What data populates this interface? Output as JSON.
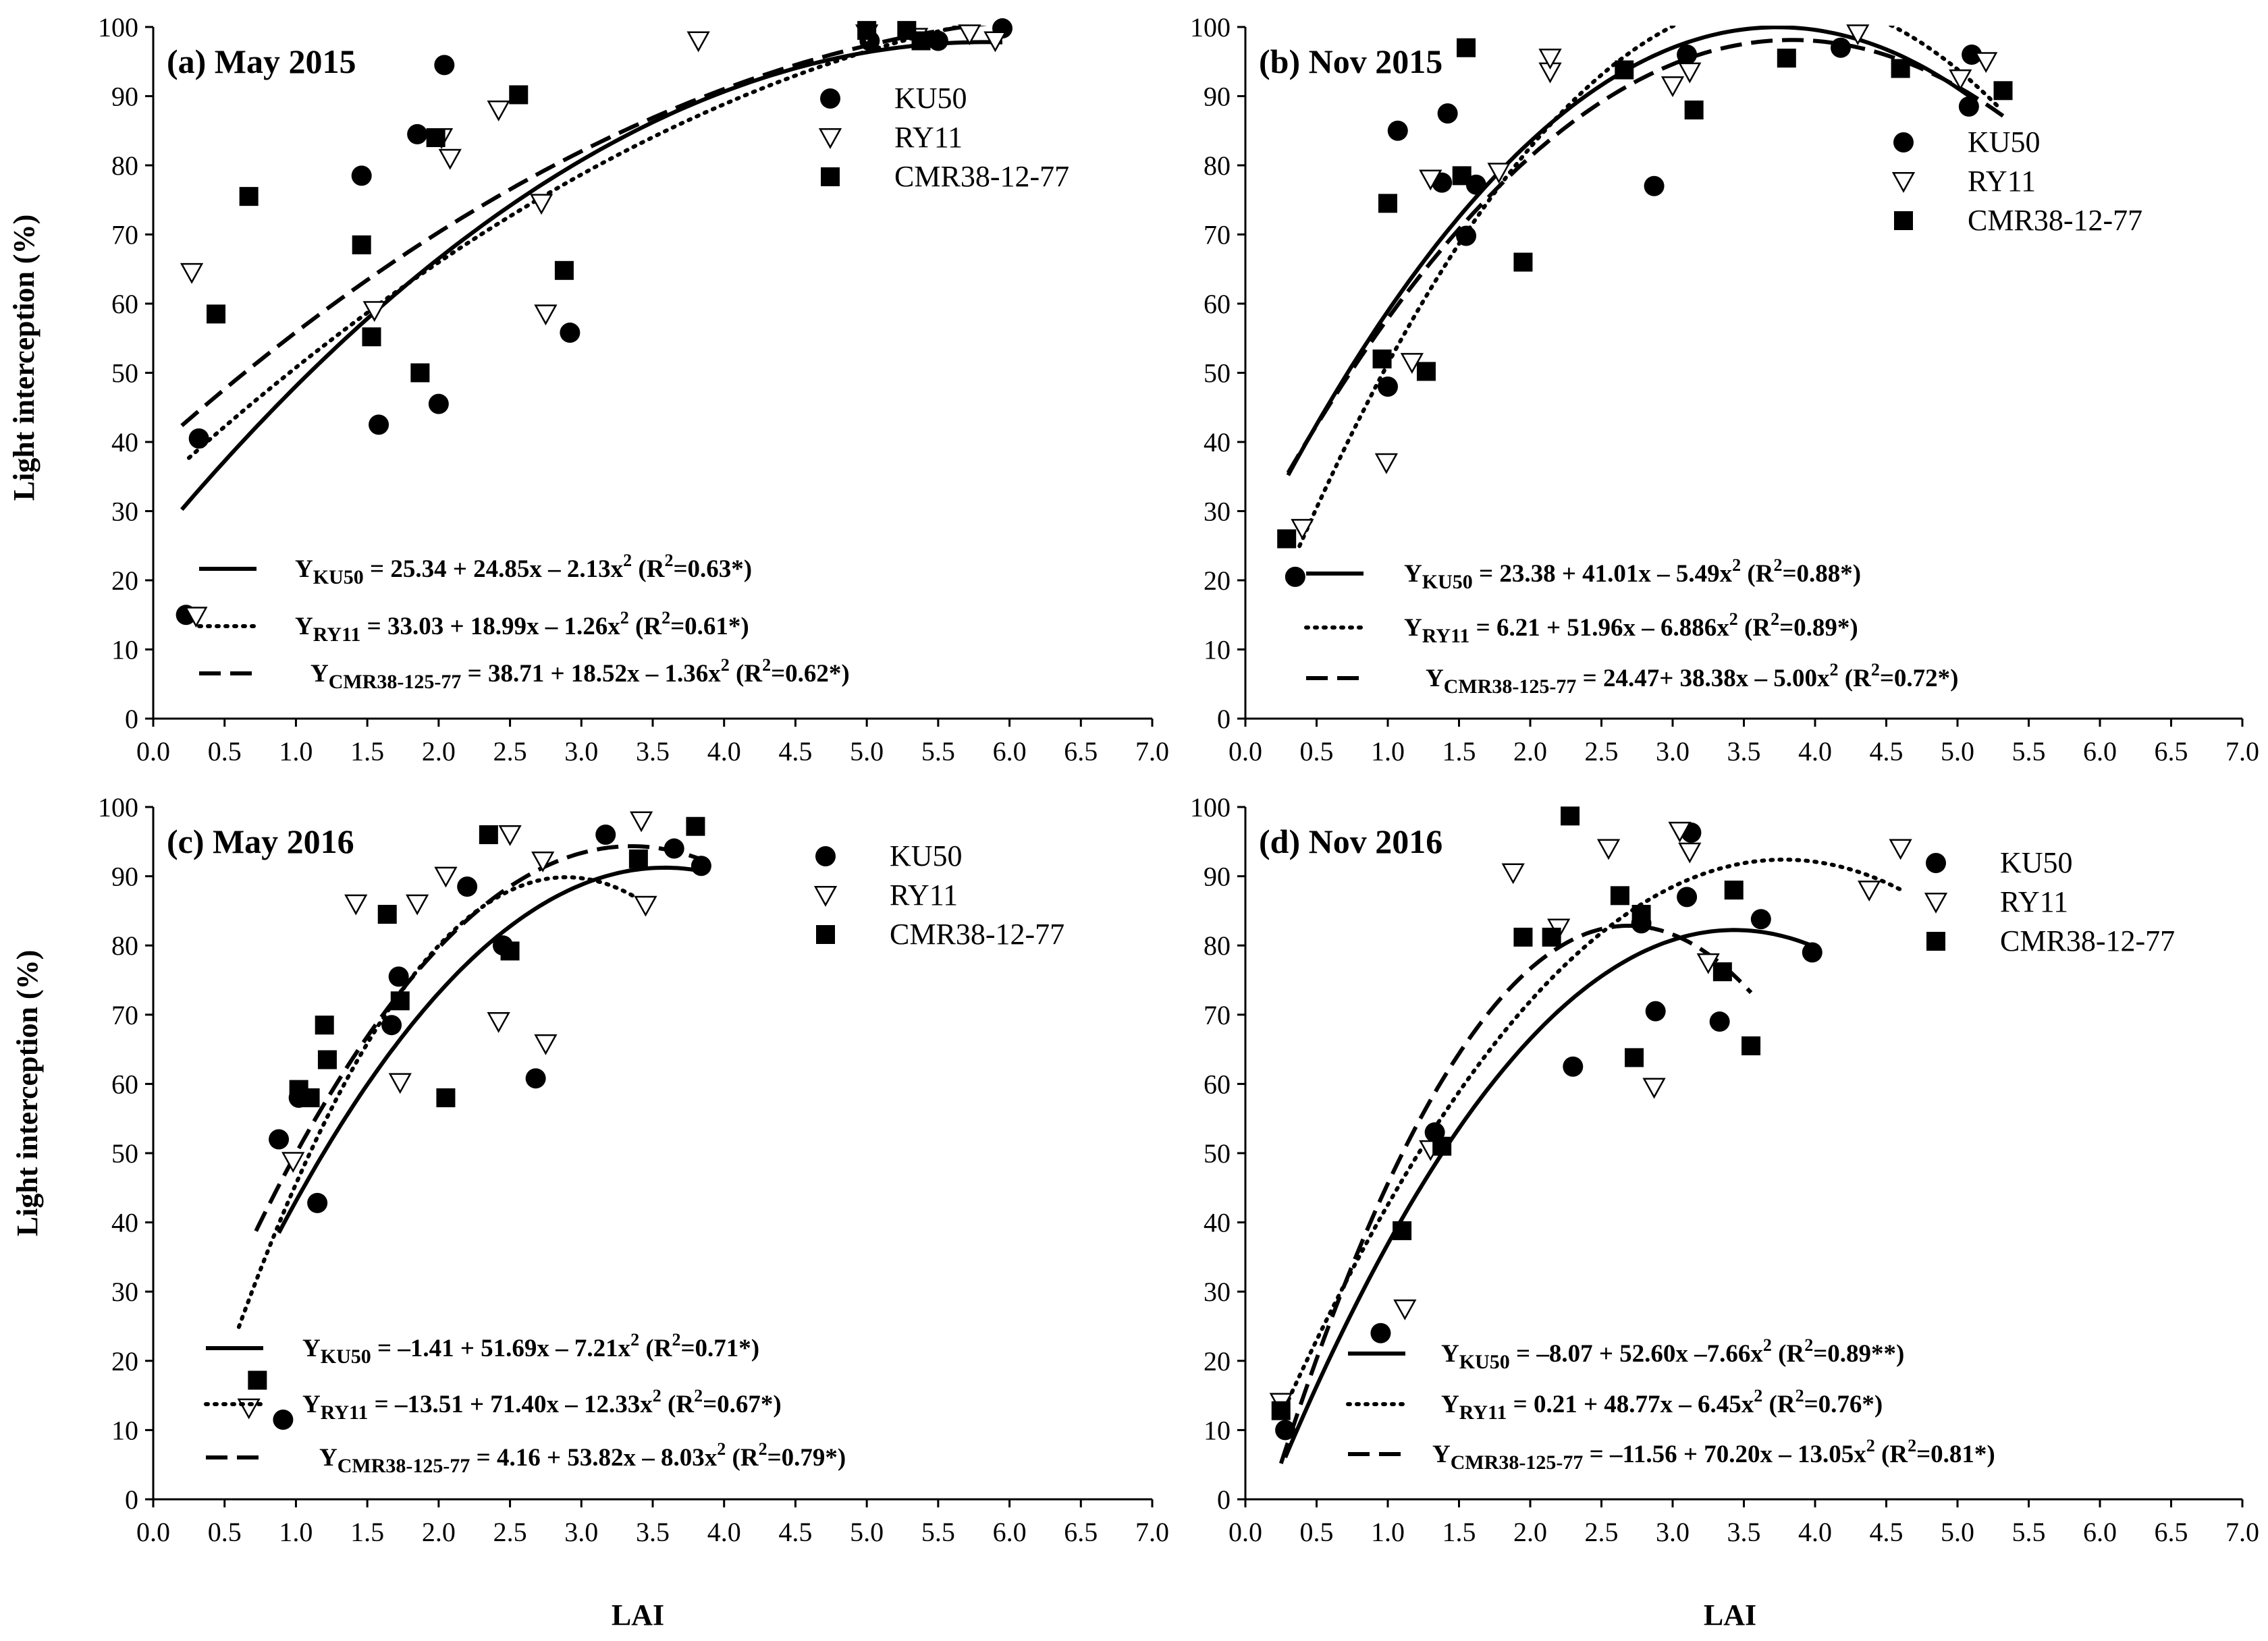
{
  "figure": {
    "y_axis_label": "Light interception (%)",
    "x_axis_label": "LAI"
  },
  "chart_data": [
    {
      "type": "scatter",
      "panel_id": "a",
      "title": "(a) May 2015",
      "xlabel": "",
      "ylabel": "Light interception (%)",
      "xlim": [
        0,
        7
      ],
      "ylim": [
        0,
        100
      ],
      "x_ticks": [
        "0.0",
        "0.5",
        "1.0",
        "1.5",
        "2.0",
        "2.5",
        "3.0",
        "3.5",
        "4.0",
        "4.5",
        "5.0",
        "5.5",
        "6.0",
        "6.5",
        "7.0"
      ],
      "y_ticks": [
        "0",
        "10",
        "20",
        "30",
        "40",
        "50",
        "60",
        "70",
        "80",
        "90",
        "100"
      ],
      "legend": [
        "KU50",
        "RY11",
        "CMR38-12-77"
      ],
      "series": [
        {
          "name": "KU50",
          "marker": "circle",
          "x": [
            0.32,
            1.46,
            1.58,
            1.85,
            2.0,
            2.04,
            2.92,
            5.02,
            5.5,
            5.95,
            0.23
          ],
          "y": [
            40.5,
            78.5,
            42.5,
            84.5,
            45.5,
            94.5,
            55.8,
            98,
            98,
            99.8,
            15
          ]
        },
        {
          "name": "RY11",
          "marker": "triangle",
          "x": [
            0.27,
            0.3,
            1.55,
            2.02,
            2.08,
            2.42,
            2.72,
            2.75,
            3.82,
            5.0,
            5.35,
            5.72,
            5.9
          ],
          "y": [
            64.5,
            14.8,
            59,
            84,
            81,
            88,
            74.5,
            58.5,
            98,
            99,
            98.5,
            99,
            98
          ]
        },
        {
          "name": "CMR38-12-77",
          "marker": "square",
          "x": [
            0.44,
            0.67,
            1.46,
            1.53,
            1.87,
            1.98,
            2.56,
            2.88,
            5.0,
            5.28,
            5.38
          ],
          "y": [
            58.5,
            75.5,
            68.5,
            55.2,
            50,
            84,
            90.2,
            64.8,
            99.5,
            99.5,
            98
          ]
        }
      ],
      "fits": [
        {
          "name": "KU50",
          "style": "solid",
          "a": 25.34,
          "b": 24.85,
          "c": -2.13,
          "x_range": [
            0.2,
            5.95
          ],
          "label_main": "Y",
          "label_sub": "KU50",
          "label_body": " = 25.34 + 24.85x – 2.13x",
          "r2_prefix": " (R",
          "r2_value": "=0.63*)"
        },
        {
          "name": "RY11",
          "style": "dotted",
          "a": 33.03,
          "b": 18.99,
          "c": -1.26,
          "x_range": [
            0.25,
            5.95
          ],
          "label_main": "Y",
          "label_sub": "RY11",
          "label_body": " = 33.03 + 18.99x – 1.26x",
          "r2_prefix": " (R",
          "r2_value": "=0.61*)"
        },
        {
          "name": "CMR38-12-77",
          "style": "dashed",
          "a": 38.71,
          "b": 18.52,
          "c": -1.36,
          "x_range": [
            0.2,
            5.95
          ],
          "label_main": "Y",
          "label_sub": "CMR38-125-77",
          "label_body": " = 38.71 + 18.52x – 1.36x",
          "r2_prefix": " (R",
          "r2_value": "=0.62*)"
        }
      ]
    },
    {
      "type": "scatter",
      "panel_id": "b",
      "title": "(b) Nov 2015",
      "xlabel": "",
      "ylabel": "",
      "xlim": [
        0,
        7
      ],
      "ylim": [
        0,
        100
      ],
      "x_ticks": [
        "0.0",
        "0.5",
        "1.0",
        "1.5",
        "2.0",
        "2.5",
        "3.0",
        "3.5",
        "4.0",
        "4.5",
        "5.0",
        "5.5",
        "6.0",
        "6.5",
        "7.0"
      ],
      "y_ticks": [
        "0",
        "10",
        "20",
        "30",
        "40",
        "50",
        "60",
        "70",
        "80",
        "90",
        "100"
      ],
      "legend": [
        "KU50",
        "RY11",
        "CMR38-12-77"
      ],
      "series": [
        {
          "name": "KU50",
          "marker": "circle",
          "x": [
            0.35,
            1.0,
            1.07,
            1.38,
            1.42,
            1.55,
            1.62,
            2.87,
            3.1,
            4.18,
            5.08,
            5.1
          ],
          "y": [
            20.5,
            48,
            85,
            77.5,
            87.5,
            69.8,
            77.2,
            77,
            96,
            97,
            88.5,
            96
          ]
        },
        {
          "name": "RY11",
          "marker": "triangle",
          "x": [
            0.4,
            0.99,
            1.17,
            1.3,
            1.78,
            2.14,
            2.14,
            3.0,
            3.12,
            4.3,
            5.02,
            5.2
          ],
          "y": [
            27.5,
            37,
            51.5,
            78,
            79,
            93.5,
            95.5,
            91.5,
            93.5,
            99,
            92.5,
            95
          ]
        },
        {
          "name": "CMR38-12-77",
          "marker": "square",
          "x": [
            0.29,
            0.96,
            1.0,
            1.27,
            1.52,
            1.55,
            1.95,
            2.66,
            3.15,
            3.8,
            4.6,
            5.32
          ],
          "y": [
            26,
            52,
            74.5,
            50.2,
            78.5,
            97,
            66,
            93.8,
            88,
            95.5,
            94,
            90.8
          ]
        }
      ],
      "fits": [
        {
          "name": "KU50",
          "style": "solid",
          "a": 23.38,
          "b": 41.01,
          "c": -5.49,
          "x_range": [
            0.3,
            5.1
          ],
          "label_main": "Y",
          "label_sub": "KU50",
          "label_body": " = 23.38 + 41.01x – 5.49x",
          "r2_prefix": " (R",
          "r2_value": "=0.88*)"
        },
        {
          "name": "RY11",
          "style": "dotted",
          "a": 6.21,
          "b": 51.96,
          "c": -6.886,
          "x_range": [
            0.38,
            5.28
          ],
          "label_main": "Y",
          "label_sub": "RY11",
          "label_body": " = 6.21 + 51.96x – 6.886x",
          "r2_prefix": " (R",
          "r2_value": "=0.89*)"
        },
        {
          "name": "CMR38-12-77",
          "style": "dashed",
          "a": 24.47,
          "b": 38.38,
          "c": -5.0,
          "x_range": [
            0.3,
            5.32
          ],
          "label_main": "Y",
          "label_sub": "CMR38-125-77",
          "label_body": " = 24.47+ 38.38x – 5.00x",
          "r2_prefix": " (R",
          "r2_value": "=0.72*)"
        }
      ]
    },
    {
      "type": "scatter",
      "panel_id": "c",
      "title": "(c) May 2016",
      "xlabel": "LAI",
      "ylabel": "Light interception (%)",
      "xlim": [
        0,
        7
      ],
      "ylim": [
        0,
        100
      ],
      "x_ticks": [
        "0.0",
        "0.5",
        "1.0",
        "1.5",
        "2.0",
        "2.5",
        "3.0",
        "3.5",
        "4.0",
        "4.5",
        "5.0",
        "5.5",
        "6.0",
        "6.5",
        "7.0"
      ],
      "y_ticks": [
        "0",
        "10",
        "20",
        "30",
        "40",
        "50",
        "60",
        "70",
        "80",
        "90",
        "100"
      ],
      "legend": [
        "KU50",
        "RY11",
        "CMR38-12-77"
      ],
      "series": [
        {
          "name": "KU50",
          "marker": "circle",
          "x": [
            0.88,
            0.91,
            1.02,
            1.15,
            1.67,
            1.72,
            2.2,
            2.45,
            2.68,
            3.17,
            3.65,
            3.84
          ],
          "y": [
            52,
            11.5,
            58,
            42.8,
            68.5,
            75.5,
            88.5,
            80,
            60.8,
            96,
            94,
            91.5
          ]
        },
        {
          "name": "RY11",
          "marker": "triangle",
          "x": [
            0.67,
            0.98,
            1.42,
            1.73,
            1.85,
            2.05,
            2.42,
            2.5,
            2.73,
            2.75,
            3.42,
            3.45
          ],
          "y": [
            13.2,
            48.8,
            86,
            60.2,
            86,
            90,
            69,
            96,
            92.2,
            65.8,
            98,
            85.8
          ]
        },
        {
          "name": "CMR38-12-77",
          "marker": "square",
          "x": [
            0.73,
            1.02,
            1.1,
            1.2,
            1.22,
            1.64,
            1.73,
            2.05,
            2.35,
            2.5,
            3.4,
            3.8
          ],
          "y": [
            17.2,
            59.2,
            58,
            68.5,
            63.5,
            84.5,
            72,
            58,
            96,
            79.2,
            92.5,
            97.2
          ]
        }
      ],
      "fits": [
        {
          "name": "KU50",
          "style": "solid",
          "a": -1.41,
          "b": 51.69,
          "c": -7.21,
          "x_range": [
            0.88,
            3.84
          ],
          "label_main": "Y",
          "label_sub": "KU50",
          "label_body": " = –1.41 + 51.69x – 7.21x",
          "r2_prefix": " (R",
          "r2_value": "=0.71*)"
        },
        {
          "name": "RY11",
          "style": "dotted",
          "a": -13.51,
          "b": 71.4,
          "c": -12.33,
          "x_range": [
            0.6,
            3.42
          ],
          "label_main": "Y",
          "label_sub": "RY11",
          "label_body": " = –13.51 + 71.40x – 12.33x",
          "r2_prefix": " (R",
          "r2_value": "=0.67*)"
        },
        {
          "name": "CMR38-12-77",
          "style": "dashed",
          "a": 4.16,
          "b": 53.82,
          "c": -8.03,
          "x_range": [
            0.72,
            3.84
          ],
          "label_main": "Y",
          "label_sub": "CMR38-125-77",
          "label_body": " = 4.16 + 53.82x – 8.03x",
          "r2_prefix": " (R",
          "r2_value": "=0.79*)"
        }
      ]
    },
    {
      "type": "scatter",
      "panel_id": "d",
      "title": "(d) Nov 2016",
      "xlabel": "LAI",
      "ylabel": "",
      "xlim": [
        0,
        7
      ],
      "ylim": [
        0,
        100
      ],
      "x_ticks": [
        "0.0",
        "0.5",
        "1.0",
        "1.5",
        "2.0",
        "2.5",
        "3.0",
        "3.5",
        "4.0",
        "4.5",
        "5.0",
        "5.5",
        "6.0",
        "6.5",
        "7.0"
      ],
      "y_ticks": [
        "0",
        "10",
        "20",
        "30",
        "40",
        "50",
        "60",
        "70",
        "80",
        "90",
        "100"
      ],
      "legend": [
        "KU50",
        "RY11",
        "CMR38-12-77"
      ],
      "series": [
        {
          "name": "KU50",
          "marker": "circle",
          "x": [
            0.28,
            0.95,
            1.33,
            2.3,
            2.78,
            2.88,
            3.1,
            3.13,
            3.33,
            3.62,
            3.98
          ],
          "y": [
            10,
            24,
            53,
            62.5,
            83.2,
            70.5,
            87,
            96.3,
            69,
            83.8,
            79
          ]
        },
        {
          "name": "RY11",
          "marker": "triangle",
          "x": [
            0.25,
            1.12,
            1.3,
            1.88,
            2.2,
            2.55,
            2.87,
            3.05,
            3.12,
            3.25,
            4.38,
            4.6
          ],
          "y": [
            14,
            27.5,
            50.5,
            90.5,
            82.5,
            94,
            59.5,
            96.5,
            93.5,
            77.5,
            88,
            94
          ]
        },
        {
          "name": "CMR38-12-77",
          "marker": "square",
          "x": [
            0.25,
            1.1,
            1.38,
            1.95,
            2.15,
            2.28,
            2.63,
            2.73,
            2.78,
            3.35,
            3.43,
            3.55
          ],
          "y": [
            12.8,
            38.8,
            51,
            81.2,
            81.2,
            98.7,
            87.2,
            63.8,
            84.5,
            76.2,
            88,
            65.5
          ]
        }
      ],
      "fits": [
        {
          "name": "KU50",
          "style": "solid",
          "a": -8.07,
          "b": 52.6,
          "c": -7.66,
          "x_range": [
            0.28,
            3.98
          ],
          "label_main": "Y",
          "label_sub": "KU50",
          "label_body": " = –8.07 + 52.60x –7.66x",
          "r2_prefix": " (R",
          "r2_value": "=0.89**)"
        },
        {
          "name": "RY11",
          "style": "dotted",
          "a": 0.21,
          "b": 48.77,
          "c": -6.45,
          "x_range": [
            0.25,
            4.6
          ],
          "label_main": "Y",
          "label_sub": "RY11",
          "label_body": " = 0.21 + 48.77x – 6.45x",
          "r2_prefix": " (R",
          "r2_value": "=0.76*)"
        },
        {
          "name": "CMR38-12-77",
          "style": "dashed",
          "a": -11.56,
          "b": 70.2,
          "c": -13.05,
          "x_range": [
            0.25,
            3.55
          ],
          "label_main": "Y",
          "label_sub": "CMR38-125-77",
          "label_body": " = –11.56 + 70.20x – 13.05x",
          "r2_prefix": " (R",
          "r2_value": "=0.81*)"
        }
      ]
    }
  ]
}
